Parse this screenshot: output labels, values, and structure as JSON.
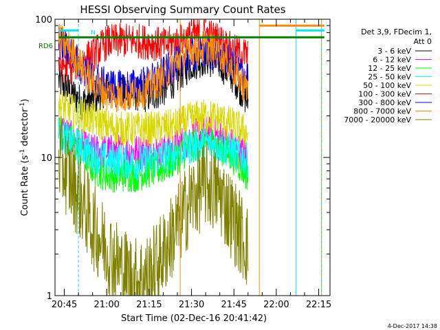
{
  "chart_data": {
    "type": "line",
    "title": "HESSI Observing Summary Count Rates",
    "xlabel": "Start Time (02-Dec-16 20:41:42)",
    "ylabel_main": "Count Rate (s",
    "ylabel_sup": "-1",
    "ylabel_tail": " detector",
    "ylabel_sup2": "-1",
    "ylabel_close": ")",
    "y_scale": "log",
    "ylim": [
      1,
      100
    ],
    "xlim": [
      "20:41:42",
      "22:19:00"
    ],
    "y_ticks": [
      "1",
      "10",
      "100"
    ],
    "x_ticks": [
      "20:45",
      "21:00",
      "21:15",
      "21:30",
      "21:45",
      "22:00",
      "22:15"
    ],
    "legend_header": [
      "Det 3,9, FDecim 1,",
      "Att 0"
    ],
    "legend_placement": "right",
    "flags": {
      "saa": "S",
      "night": "N",
      "rd6": "RD6"
    },
    "footer_date": "4-Dec-2017 14:38",
    "colors": {
      "saa": "#ff8c00",
      "night": "#00e5ee",
      "rd6": "#008000",
      "cyan_line": "#00e5ee",
      "orange_line": "#ff8c00"
    },
    "series": [
      {
        "name": "3 - 6 keV",
        "color": "#000000",
        "points": [
          [
            "20:43",
            36
          ],
          [
            "20:47",
            30
          ],
          [
            "20:51",
            25
          ],
          [
            "20:55",
            26
          ],
          [
            "20:58",
            30
          ],
          [
            "21:01",
            32
          ],
          [
            "21:05",
            30
          ],
          [
            "21:10",
            29
          ],
          [
            "21:15",
            28
          ],
          [
            "21:20",
            31
          ],
          [
            "21:25",
            38
          ],
          [
            "21:30",
            48
          ],
          [
            "21:35",
            52
          ],
          [
            "21:40",
            48
          ],
          [
            "21:45",
            38
          ],
          [
            "21:48",
            30
          ],
          [
            "21:50",
            25
          ]
        ]
      },
      {
        "name": "6 - 12 keV",
        "color": "#ff00ff",
        "points": [
          [
            "20:43",
            17
          ],
          [
            "20:47",
            14
          ],
          [
            "20:51",
            12
          ],
          [
            "20:55",
            11
          ],
          [
            "21:00",
            11
          ],
          [
            "21:05",
            11
          ],
          [
            "21:10",
            11
          ],
          [
            "21:15",
            11
          ],
          [
            "21:20",
            11
          ],
          [
            "21:25",
            12
          ],
          [
            "21:30",
            14
          ],
          [
            "21:35",
            15
          ],
          [
            "21:40",
            14
          ],
          [
            "21:45",
            12
          ],
          [
            "21:50",
            10
          ]
        ]
      },
      {
        "name": "12 - 25 keV",
        "color": "#00ff00",
        "points": [
          [
            "20:43",
            16
          ],
          [
            "20:47",
            13
          ],
          [
            "20:51",
            11
          ],
          [
            "20:55",
            8.5
          ],
          [
            "21:00",
            7.5
          ],
          [
            "21:05",
            7.5
          ],
          [
            "21:10",
            7.5
          ],
          [
            "21:15",
            8
          ],
          [
            "21:20",
            8.5
          ],
          [
            "21:25",
            10
          ],
          [
            "21:30",
            12
          ],
          [
            "21:35",
            13
          ],
          [
            "21:40",
            12
          ],
          [
            "21:45",
            10
          ],
          [
            "21:50",
            7.5
          ]
        ]
      },
      {
        "name": "25 - 50 keV",
        "color": "#00ffff",
        "points": [
          [
            "20:43",
            15
          ],
          [
            "20:47",
            13
          ],
          [
            "20:51",
            12
          ],
          [
            "20:55",
            10.5
          ],
          [
            "21:00",
            9.5
          ],
          [
            "21:05",
            9.5
          ],
          [
            "21:10",
            9
          ],
          [
            "21:15",
            9.5
          ],
          [
            "21:20",
            10
          ],
          [
            "21:25",
            11
          ],
          [
            "21:30",
            12
          ],
          [
            "21:35",
            12.5
          ],
          [
            "21:40",
            12
          ],
          [
            "21:45",
            11
          ],
          [
            "21:50",
            9.5
          ]
        ]
      },
      {
        "name": "50 - 100 keV",
        "color": "#d8d800",
        "points": [
          [
            "20:43",
            24
          ],
          [
            "20:47",
            22
          ],
          [
            "20:51",
            20
          ],
          [
            "20:55",
            19
          ],
          [
            "21:00",
            17
          ],
          [
            "21:05",
            16
          ],
          [
            "21:10",
            16
          ],
          [
            "21:15",
            16
          ],
          [
            "21:20",
            16.5
          ],
          [
            "21:25",
            17
          ],
          [
            "21:30",
            19
          ],
          [
            "21:35",
            20
          ],
          [
            "21:40",
            19
          ],
          [
            "21:45",
            17
          ],
          [
            "21:50",
            15
          ]
        ]
      },
      {
        "name": "100 - 300 keV",
        "color": "#ff0000",
        "points": [
          [
            "20:43",
            48
          ],
          [
            "20:47",
            45
          ],
          [
            "20:51",
            50
          ],
          [
            "20:55",
            55
          ],
          [
            "21:00",
            68
          ],
          [
            "21:05",
            70
          ],
          [
            "21:10",
            70
          ],
          [
            "21:15",
            68
          ],
          [
            "21:20",
            65
          ],
          [
            "21:25",
            68
          ],
          [
            "21:30",
            75
          ],
          [
            "21:35",
            78
          ],
          [
            "21:40",
            70
          ],
          [
            "21:45",
            58
          ],
          [
            "21:50",
            55
          ]
        ]
      },
      {
        "name": "300 - 800 keV",
        "color": "#0000ff",
        "points": [
          [
            "20:43",
            68
          ],
          [
            "20:47",
            60
          ],
          [
            "20:51",
            45
          ],
          [
            "20:55",
            38
          ],
          [
            "21:00",
            33
          ],
          [
            "21:05",
            32
          ],
          [
            "21:10",
            33
          ],
          [
            "21:15",
            35
          ],
          [
            "21:20",
            40
          ],
          [
            "21:25",
            48
          ],
          [
            "21:30",
            55
          ],
          [
            "21:35",
            58
          ],
          [
            "21:40",
            55
          ],
          [
            "21:45",
            45
          ],
          [
            "21:50",
            38
          ]
        ]
      },
      {
        "name": "800 - 7000 keV",
        "color": "#ff8c00",
        "points": [
          [
            "20:43",
            70
          ],
          [
            "20:47",
            62
          ],
          [
            "20:51",
            45
          ],
          [
            "20:55",
            35
          ],
          [
            "21:00",
            29
          ],
          [
            "21:05",
            28
          ],
          [
            "21:10",
            29
          ],
          [
            "21:15",
            32
          ],
          [
            "21:20",
            38
          ],
          [
            "21:25",
            50
          ],
          [
            "21:30",
            60
          ],
          [
            "21:35",
            62
          ],
          [
            "21:40",
            58
          ],
          [
            "21:45",
            42
          ],
          [
            "21:50",
            31
          ]
        ]
      },
      {
        "name": "7000 - 20000 keV",
        "color": "#808000",
        "points": [
          [
            "20:43",
            10
          ],
          [
            "20:47",
            7
          ],
          [
            "20:51",
            5
          ],
          [
            "20:55",
            3.2
          ],
          [
            "21:00",
            2.2
          ],
          [
            "21:05",
            1.6
          ],
          [
            "21:10",
            1.3
          ],
          [
            "21:15",
            1.4
          ],
          [
            "21:20",
            2
          ],
          [
            "21:25",
            3.2
          ],
          [
            "21:30",
            5
          ],
          [
            "21:35",
            6.5
          ],
          [
            "21:40",
            5.5
          ],
          [
            "21:45",
            3.5
          ],
          [
            "21:50",
            2.2
          ]
        ]
      }
    ],
    "markers": {
      "night_boundaries": [
        "20:50",
        "22:07",
        "22:16"
      ],
      "saa_boundaries": [
        "21:54",
        "22:16"
      ],
      "attenuator_boundaries": [
        "21:26"
      ]
    },
    "flag_bars": {
      "saa_top": {
        "start": "21:54",
        "end": "22:17",
        "value": 90
      },
      "night_top": [
        {
          "start": "20:43",
          "end": "20:50",
          "value": 83
        },
        {
          "start": "22:07",
          "end": "22:17",
          "value": 83
        }
      ],
      "rd6": {
        "start": "20:43",
        "end": "22:17",
        "value": 74
      }
    }
  }
}
